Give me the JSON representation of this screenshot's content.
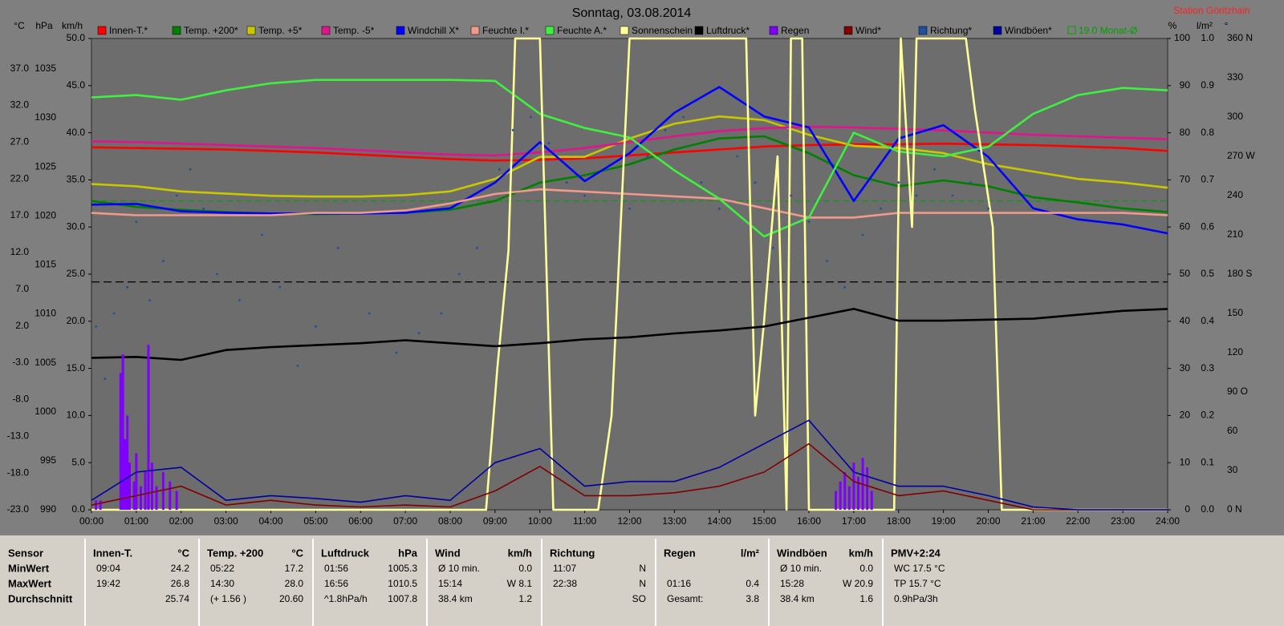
{
  "chart_data": {
    "type": "line",
    "title": "Sonntag, 03.08.2014",
    "station": "Station Göritzhain",
    "xlim": [
      0,
      24
    ],
    "xticks": [
      {
        "value": 0,
        "label": "00:00"
      },
      {
        "value": 1,
        "label": "01:00"
      },
      {
        "value": 2,
        "label": "02:00"
      },
      {
        "value": 3,
        "label": "03:00"
      },
      {
        "value": 4,
        "label": "04:00"
      },
      {
        "value": 5,
        "label": "05:00"
      },
      {
        "value": 6,
        "label": "06:00"
      },
      {
        "value": 7,
        "label": "07:00"
      },
      {
        "value": 8,
        "label": "08:00"
      },
      {
        "value": 9,
        "label": "09:00"
      },
      {
        "value": 10,
        "label": "10:00"
      },
      {
        "value": 11,
        "label": "11:00"
      },
      {
        "value": 12,
        "label": "12:00"
      },
      {
        "value": 13,
        "label": "13:00"
      },
      {
        "value": 14,
        "label": "14:00"
      },
      {
        "value": 15,
        "label": "15:00"
      },
      {
        "value": 16,
        "label": "16:00"
      },
      {
        "value": 17,
        "label": "17:00"
      },
      {
        "value": 18,
        "label": "18:00"
      },
      {
        "value": 19,
        "label": "19:00"
      },
      {
        "value": 20,
        "label": "20:00"
      },
      {
        "value": 21,
        "label": "21:00"
      },
      {
        "value": 22,
        "label": "22:00"
      },
      {
        "value": 23,
        "label": "23:00"
      },
      {
        "value": 24,
        "label": "24:00"
      }
    ],
    "axes": [
      {
        "id": "temp",
        "side": "left",
        "label": "°C",
        "ylim": [
          -23,
          41.1
        ],
        "yticks": [
          {
            "value": 37,
            "label": "37.0"
          },
          {
            "value": 32,
            "label": "32.0"
          },
          {
            "value": 27,
            "label": "27.0"
          },
          {
            "value": 22,
            "label": "22.0"
          },
          {
            "value": 17,
            "label": "17.0"
          },
          {
            "value": 12,
            "label": "12.0"
          },
          {
            "value": 7,
            "label": "7.0"
          },
          {
            "value": 2,
            "label": "2.0"
          },
          {
            "value": -3,
            "label": "-3.0"
          },
          {
            "value": -8,
            "label": "-8.0"
          },
          {
            "value": -13,
            "label": "-13.0"
          },
          {
            "value": -18,
            "label": "-18.0"
          },
          {
            "value": -23,
            "label": "-23.0"
          }
        ]
      },
      {
        "id": "hpa",
        "side": "left",
        "label": "hPa",
        "ylim": [
          990,
          1038.1
        ],
        "yticks": [
          1035,
          1030,
          1025,
          1020,
          1015,
          1010,
          1005,
          1000,
          995,
          990
        ]
      },
      {
        "id": "kmh",
        "side": "left",
        "label": "km/h",
        "ylim": [
          0,
          50
        ],
        "yticks": [
          {
            "value": 50,
            "label": "50.0"
          },
          {
            "value": 45,
            "label": "45.0"
          },
          {
            "value": 40,
            "label": "40.0"
          },
          {
            "value": 35,
            "label": "35.0"
          },
          {
            "value": 30,
            "label": "30.0"
          },
          {
            "value": 25,
            "label": "25.0"
          },
          {
            "value": 20,
            "label": "20.0"
          },
          {
            "value": 15,
            "label": "15.0"
          },
          {
            "value": 10,
            "label": "10.0"
          },
          {
            "value": 5,
            "label": "5.0"
          },
          {
            "value": 0,
            "label": "0.0"
          }
        ]
      },
      {
        "id": "pct",
        "side": "right",
        "label": "%",
        "ylim": [
          0,
          100
        ],
        "yticks": [
          100,
          90,
          80,
          70,
          60,
          50,
          40,
          30,
          20,
          10,
          0
        ]
      },
      {
        "id": "rain",
        "side": "right",
        "label": "l/m²",
        "ylim": [
          0,
          1
        ],
        "yticks": [
          {
            "value": 1,
            "label": "1.0"
          },
          0.9,
          0.8,
          0.7,
          0.6,
          0.5,
          0.4,
          0.3,
          0.2,
          0.1,
          {
            "value": 0,
            "label": "0.0"
          }
        ]
      },
      {
        "id": "deg",
        "side": "right",
        "label": "°",
        "ylim": [
          0,
          360
        ],
        "yticks": [
          {
            "value": 360,
            "label": "360 N"
          },
          330,
          300,
          {
            "value": 270,
            "label": "270 W"
          },
          240,
          210,
          {
            "value": 180,
            "label": "180 S"
          },
          150,
          120,
          {
            "value": 90,
            "label": "90 O"
          },
          60,
          30,
          {
            "value": 0,
            "label": "0 N"
          }
        ]
      }
    ],
    "x": [
      0,
      1,
      2,
      3,
      4,
      5,
      6,
      7,
      8,
      9,
      10,
      11,
      12,
      13,
      14,
      15,
      16,
      17,
      18,
      19,
      20,
      21,
      22,
      23,
      24
    ],
    "series": [
      {
        "name": "Innen-T.*",
        "kind": "line",
        "axis": "temp",
        "color": "#ff0000",
        "values": [
          26.3,
          26.2,
          26.1,
          26.0,
          25.8,
          25.6,
          25.3,
          25.0,
          24.7,
          24.5,
          24.6,
          24.8,
          25.2,
          25.6,
          26.0,
          26.4,
          26.6,
          26.7,
          26.7,
          26.8,
          26.7,
          26.6,
          26.4,
          26.2,
          25.8
        ]
      },
      {
        "name": "Temp. +200*",
        "kind": "line",
        "axis": "temp",
        "color": "#008000",
        "values": [
          19.0,
          18.2,
          17.8,
          17.5,
          17.3,
          17.2,
          17.3,
          17.4,
          17.8,
          19.0,
          21.5,
          22.5,
          24.0,
          26.0,
          27.5,
          27.8,
          25.5,
          22.5,
          21.0,
          21.8,
          21.0,
          19.5,
          18.8,
          18.0,
          17.5
        ]
      },
      {
        "name": "Temp. +5*",
        "kind": "line",
        "axis": "temp",
        "color": "#c8c800",
        "values": [
          21.3,
          21.0,
          20.3,
          20.0,
          19.7,
          19.6,
          19.6,
          19.8,
          20.3,
          22.0,
          25.0,
          25.0,
          27.5,
          29.5,
          30.5,
          30.0,
          28.0,
          26.5,
          26.2,
          25.5,
          24.0,
          23.0,
          22.0,
          21.5,
          20.8
        ]
      },
      {
        "name": "Temp. -5*",
        "kind": "line",
        "axis": "temp",
        "color": "#e0148c",
        "values": [
          27.1,
          27.0,
          26.8,
          26.6,
          26.4,
          26.2,
          25.9,
          25.6,
          25.3,
          25.2,
          25.6,
          26.2,
          27.0,
          27.8,
          28.5,
          28.9,
          29.1,
          29.0,
          28.8,
          28.6,
          28.3,
          28.0,
          27.8,
          27.6,
          27.4
        ]
      },
      {
        "name": "Windchill X*",
        "kind": "line",
        "axis": "temp",
        "color": "#0000ff",
        "values": [
          18.5,
          18.6,
          17.6,
          17.4,
          17.3,
          17.3,
          17.3,
          17.4,
          18.0,
          21.5,
          27.0,
          21.7,
          25.5,
          31.0,
          34.5,
          30.5,
          29.0,
          19.0,
          27.5,
          29.3,
          25.0,
          18.0,
          16.5,
          15.8,
          14.6
        ]
      },
      {
        "name": "Feuchte I.*",
        "kind": "line",
        "axis": "pct",
        "color": "#f09a8c",
        "values": [
          63,
          62.5,
          62.5,
          62.5,
          62.5,
          63,
          63,
          63.5,
          65,
          67,
          68,
          67.5,
          67,
          66.5,
          66,
          64,
          62,
          62,
          63,
          63,
          63,
          63,
          63,
          63,
          62.5
        ]
      },
      {
        "name": "Feuchte A.*",
        "kind": "line",
        "axis": "pct",
        "color": "#40f040",
        "values": [
          87.5,
          88,
          87,
          89,
          90.5,
          91.2,
          91.2,
          91.2,
          91.2,
          91,
          84,
          81,
          79,
          72,
          66,
          58,
          62,
          80,
          76,
          75,
          77,
          84,
          88,
          89.5,
          89
        ]
      },
      {
        "name": "Sonnenschein",
        "kind": "line",
        "axis": "pct",
        "color": "#ffff99",
        "x": [
          0,
          8.8,
          9.05,
          9.3,
          9.45,
          10.0,
          10.3,
          11.3,
          11.6,
          11.8,
          12.0,
          14.6,
          14.8,
          15.0,
          15.3,
          15.5,
          15.6,
          15.85,
          16.0,
          17.9,
          18.05,
          18.3,
          18.4,
          19.5,
          19.7,
          20.1,
          20.3,
          24
        ],
        "values": [
          0,
          0,
          30,
          55,
          100,
          100,
          0,
          0,
          20,
          60,
          100,
          100,
          20,
          40,
          75,
          0,
          100,
          100,
          0,
          0,
          100,
          60,
          100,
          100,
          85,
          60,
          0,
          0
        ]
      },
      {
        "name": "Luftdruck*",
        "kind": "line",
        "axis": "hpa",
        "color": "#000000",
        "values": [
          1005.5,
          1005.6,
          1005.3,
          1006.3,
          1006.6,
          1006.8,
          1007.0,
          1007.3,
          1007.0,
          1006.7,
          1007.0,
          1007.4,
          1007.6,
          1008.0,
          1008.3,
          1008.7,
          1009.6,
          1010.5,
          1009.3,
          1009.3,
          1009.4,
          1009.5,
          1009.9,
          1010.3,
          1010.5
        ]
      },
      {
        "name": "Regen",
        "kind": "bar",
        "axis": "rain",
        "color": "#8000ff",
        "x": [
          0.1,
          0.2,
          0.65,
          0.7,
          0.75,
          0.8,
          0.85,
          0.95,
          1.0,
          1.1,
          1.2,
          1.27,
          1.35,
          1.45,
          1.6,
          1.75,
          1.9,
          16.6,
          16.7,
          16.8,
          16.9,
          17.0,
          17.1,
          17.2,
          17.3,
          17.4
        ],
        "values": [
          0.02,
          0.02,
          0.29,
          0.33,
          0.15,
          0.2,
          0.1,
          0.06,
          0.12,
          0.05,
          0.08,
          0.35,
          0.1,
          0.05,
          0.08,
          0.06,
          0.04,
          0.04,
          0.06,
          0.08,
          0.05,
          0.1,
          0.07,
          0.11,
          0.09,
          0.04
        ]
      },
      {
        "name": "Wind*",
        "kind": "line",
        "axis": "kmh",
        "color": "#800000",
        "values": [
          0.5,
          1.5,
          2.5,
          0.5,
          1.0,
          0.5,
          0.3,
          0.5,
          0.3,
          2.0,
          4.6,
          1.5,
          1.5,
          1.8,
          2.5,
          4.0,
          7.0,
          3.0,
          1.5,
          2.0,
          1.0,
          0,
          0,
          0,
          0
        ]
      },
      {
        "name": "Richtung*",
        "kind": "scatter",
        "axis": "deg",
        "color": "#1f4f9f",
        "x": [
          0.1,
          0.3,
          0.5,
          0.8,
          1.0,
          1.3,
          1.6,
          1.9,
          2.2,
          2.5,
          2.8,
          3.3,
          3.8,
          4.2,
          4.6,
          5.0,
          5.5,
          6.2,
          6.8,
          7.3,
          7.8,
          8.2,
          8.6,
          9.1,
          9.4,
          9.8,
          10.2,
          10.6,
          11.0,
          11.5,
          12.0,
          12.4,
          12.8,
          13.2,
          13.6,
          14.0,
          14.4,
          14.8,
          15.2,
          15.6,
          16.0,
          16.4,
          16.8,
          17.2,
          17.6,
          18.0,
          18.4,
          18.8,
          19.2,
          19.6,
          20.0
        ],
        "values": [
          140,
          100,
          150,
          170,
          220,
          160,
          190,
          240,
          260,
          230,
          180,
          160,
          210,
          170,
          110,
          140,
          200,
          150,
          120,
          135,
          150,
          180,
          200,
          260,
          290,
          300,
          280,
          250,
          240,
          260,
          230,
          270,
          290,
          300,
          250,
          230,
          270,
          250,
          200,
          240,
          220,
          190,
          170,
          210,
          230,
          250,
          240,
          260,
          240,
          250,
          230
        ]
      },
      {
        "name": "Windböen*",
        "kind": "line",
        "axis": "kmh",
        "color": "#0000a0",
        "values": [
          1.0,
          4.0,
          4.5,
          1.0,
          1.5,
          1.2,
          0.8,
          1.5,
          1.0,
          5.0,
          6.5,
          2.5,
          3.0,
          3.0,
          4.5,
          7.0,
          9.5,
          4.0,
          2.5,
          2.5,
          1.5,
          0.3,
          0,
          0,
          0
        ]
      }
    ],
    "monthly_average": {
      "label": "19.0 Monat-Ø",
      "value": 19.0,
      "axis": "temp",
      "color": "#00a000"
    },
    "reference_lines": [
      {
        "axis": "hpa",
        "value": 1013.25,
        "color": "#000000"
      }
    ]
  },
  "table": {
    "columns": [
      {
        "header": [
          "Sensor",
          null
        ],
        "rows": [
          [
            "MinWert",
            null
          ],
          [
            "MaxWert",
            null
          ],
          [
            "Durchschnitt",
            null
          ]
        ]
      },
      {
        "header": [
          "Innen-T.",
          "°C"
        ],
        "rows": [
          [
            "09:04",
            "24.2"
          ],
          [
            "19:42",
            "26.8"
          ],
          [
            null,
            "25.74"
          ]
        ]
      },
      {
        "header": [
          "Temp. +200",
          "°C"
        ],
        "rows": [
          [
            "05:22",
            "17.2"
          ],
          [
            "14:30",
            "28.0"
          ],
          [
            "(+ 1.56 )",
            "20.60"
          ]
        ]
      },
      {
        "header": [
          "Luftdruck",
          "hPa"
        ],
        "rows": [
          [
            "01:56",
            "1005.3"
          ],
          [
            "16:56",
            "1010.5"
          ],
          [
            "^1.8hPa/h",
            "1007.8"
          ]
        ]
      },
      {
        "header": [
          "Wind",
          "km/h"
        ],
        "rows": [
          [
            "Ø 10 min.",
            "0.0"
          ],
          [
            "15:14",
            "W 8.1"
          ],
          [
            "38.4 km",
            "1.2"
          ]
        ]
      },
      {
        "header": [
          "Richtung",
          null
        ],
        "rows": [
          [
            "11:07",
            "N"
          ],
          [
            "22:38",
            "N"
          ],
          [
            null,
            "SO"
          ]
        ]
      },
      {
        "header": [
          "Regen",
          "l/m²"
        ],
        "rows": [
          [
            null,
            null
          ],
          [
            "01:16",
            "0.4"
          ],
          [
            "Gesamt:",
            "3.8"
          ]
        ]
      },
      {
        "header": [
          "Windböen",
          "km/h"
        ],
        "rows": [
          [
            "Ø 10 min.",
            "0.0"
          ],
          [
            "15:28",
            "W 20.9"
          ],
          [
            "38.4 km",
            "1.6"
          ]
        ]
      },
      {
        "header": [
          "PMV+2:24",
          null
        ],
        "rows": [
          [
            "WC 17.5 °C",
            null
          ],
          [
            "TP 15.7 °C",
            null
          ],
          [
            "0.9hPa/3h",
            null
          ]
        ]
      }
    ]
  }
}
